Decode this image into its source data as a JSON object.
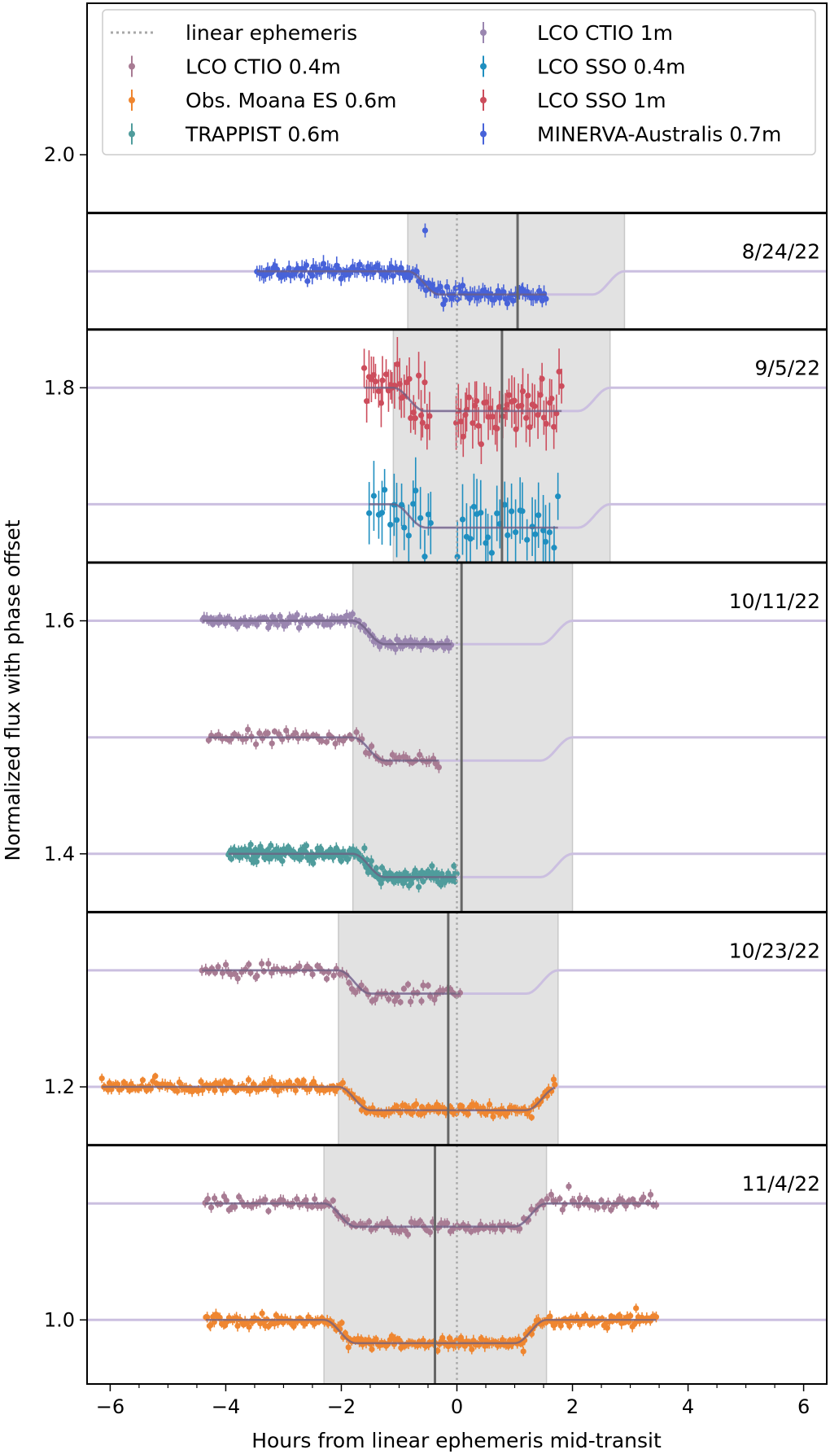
{
  "chart_data": {
    "type": "scatter",
    "xlabel": "Hours from linear ephemeris mid-transit",
    "ylabel": "Normalized flux with phase offset",
    "xlim": [
      -6.4,
      6.4
    ],
    "ylim": [
      0.945,
      2.13
    ],
    "x_ticks": [
      -6,
      -4,
      -2,
      0,
      2,
      4,
      6
    ],
    "x_tick_labels": [
      "−6",
      "−4",
      "−2",
      "0",
      "2",
      "4",
      "6"
    ],
    "y_ticks": [
      1.0,
      1.2,
      1.4,
      1.6,
      1.8,
      2.0
    ],
    "y_tick_labels": [
      "1.0",
      "1.2",
      "1.4",
      "1.6",
      "1.8",
      "2.0"
    ],
    "grid": false,
    "legend_location": "top",
    "linear_ephemeris_x": 0,
    "legend": [
      {
        "label": "linear ephemeris",
        "kind": "dotted-line",
        "color": "#a8a8a8"
      },
      {
        "label": "LCO CTIO 0.4m",
        "kind": "errorbar",
        "color": "#a87b93"
      },
      {
        "label": "Obs. Moana ES 0.6m",
        "kind": "errorbar",
        "color": "#ef8630"
      },
      {
        "label": "TRAPPIST 0.6m",
        "kind": "errorbar",
        "color": "#4f9c9c"
      },
      {
        "label": "LCO CTIO 1m",
        "kind": "errorbar",
        "color": "#9a86b0"
      },
      {
        "label": "LCO SSO 0.4m",
        "kind": "errorbar",
        "color": "#1f8fc0"
      },
      {
        "label": "LCO SSO 1m",
        "kind": "errorbar",
        "color": "#cc4d5c"
      },
      {
        "label": "MINERVA-Australis 0.7m",
        "kind": "errorbar",
        "color": "#4762d9"
      }
    ],
    "panels": [
      {
        "date": "8/24/22",
        "flux_range": [
          1.85,
          1.95
        ],
        "shade": [
          -0.85,
          2.9
        ],
        "midtransit_line": 1.05,
        "series": [
          {
            "name": "MINERVA-Australis 0.7m",
            "color": "#4762d9",
            "offset": 1.9,
            "x_start": -3.45,
            "x_end": 1.55,
            "n": 150,
            "noise": 0.0032,
            "err": 0.006,
            "outliers": [
              [
                -0.55,
                1.935
              ]
            ]
          }
        ]
      },
      {
        "date": "9/5/22",
        "flux_range": [
          1.65,
          1.85
        ],
        "shade": [
          -1.1,
          2.65
        ],
        "midtransit_line": 0.78,
        "series": [
          {
            "name": "LCO SSO 1m",
            "color": "#cc4d5c",
            "offset": 1.8,
            "x_start": -1.6,
            "x_end": 1.8,
            "n": 85,
            "noise": 0.012,
            "err": 0.018,
            "gap": [
              -0.45,
              -0.05
            ]
          },
          {
            "name": "LCO SSO 0.4m",
            "color": "#1f8fc0",
            "offset": 1.7,
            "x_start": -1.5,
            "x_end": 1.75,
            "n": 50,
            "noise": 0.013,
            "err": 0.025,
            "gap": [
              -0.45,
              0.0
            ]
          }
        ]
      },
      {
        "date": "10/11/22",
        "flux_range": [
          1.35,
          1.65
        ],
        "shade": [
          -1.8,
          2.0
        ],
        "midtransit_line": 0.08,
        "series": [
          {
            "name": "LCO CTIO 1m",
            "color": "#9a86b0",
            "offset": 1.6,
            "x_start": -4.4,
            "x_end": -0.1,
            "n": 130,
            "noise": 0.0022,
            "err": 0.004
          },
          {
            "name": "LCO CTIO 0.4m",
            "color": "#a87b93",
            "offset": 1.5,
            "x_start": -4.3,
            "x_end": -0.3,
            "n": 70,
            "noise": 0.003,
            "err": 0.004
          },
          {
            "name": "TRAPPIST 0.6m",
            "color": "#4f9c9c",
            "offset": 1.4,
            "x_start": -3.95,
            "x_end": 0.0,
            "n": 230,
            "noise": 0.0033,
            "err": 0.004
          }
        ]
      },
      {
        "date": "10/23/22",
        "flux_range": [
          1.15,
          1.35
        ],
        "shade": [
          -2.05,
          1.75
        ],
        "midtransit_line": -0.15,
        "series": [
          {
            "name": "LCO CTIO 0.4m",
            "color": "#a87b93",
            "offset": 1.3,
            "x_start": -4.4,
            "x_end": 0.05,
            "n": 80,
            "noise": 0.0035,
            "err": 0.004
          },
          {
            "name": "Obs. Moana ES 0.6m",
            "color": "#ef8630",
            "offset": 1.2,
            "x_start": -6.15,
            "x_end": 1.7,
            "n": 230,
            "noise": 0.0027,
            "err": 0.004
          }
        ]
      },
      {
        "date": "11/4/22",
        "flux_range": [
          0.945,
          1.15
        ],
        "shade": [
          -2.3,
          1.55
        ],
        "midtransit_line": -0.38,
        "series": [
          {
            "name": "LCO CTIO 0.4m",
            "color": "#a87b93",
            "offset": 1.1,
            "x_start": -4.35,
            "x_end": 3.45,
            "n": 150,
            "noise": 0.0028,
            "err": 0.004
          },
          {
            "name": "Obs. Moana ES 0.6m",
            "color": "#ef8630",
            "offset": 1.0,
            "x_start": -4.35,
            "x_end": 3.45,
            "n": 250,
            "noise": 0.0026,
            "err": 0.004,
            "outliers": [
              [
                1.15,
                0.973
              ],
              [
                3.1,
                1.01
              ]
            ]
          }
        ]
      }
    ]
  }
}
